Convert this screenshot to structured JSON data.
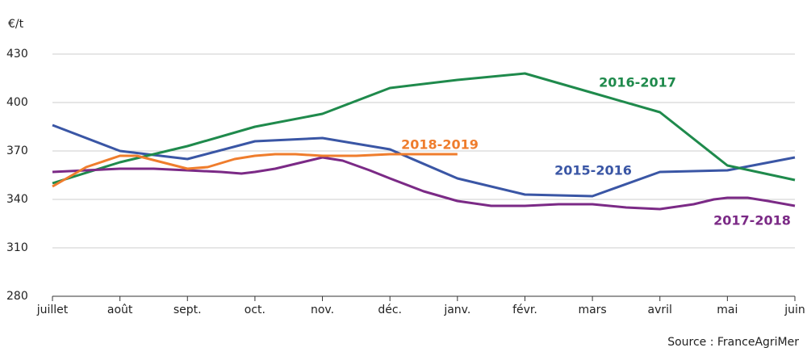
{
  "chart_data": {
    "type": "line",
    "y_unit_label": "€/t",
    "source": "Source : FranceAgriMer",
    "xlim": [
      0,
      11
    ],
    "xticks": [
      {
        "value": 0,
        "label": "juillet"
      },
      {
        "value": 1,
        "label": "août"
      },
      {
        "value": 2,
        "label": "sept."
      },
      {
        "value": 3,
        "label": "oct."
      },
      {
        "value": 4,
        "label": "nov."
      },
      {
        "value": 5,
        "label": "déc."
      },
      {
        "value": 6,
        "label": "janv."
      },
      {
        "value": 7,
        "label": "févr."
      },
      {
        "value": 8,
        "label": "mars"
      },
      {
        "value": 9,
        "label": "avril"
      },
      {
        "value": 10,
        "label": "mai"
      },
      {
        "value": 11,
        "label": "juin"
      }
    ],
    "ylim": [
      280,
      430
    ],
    "yticks": [
      280,
      310,
      340,
      370,
      400,
      430
    ],
    "grid": true,
    "series": [
      {
        "name": "2015-2016",
        "color": "#3a56a5",
        "x": [
          0,
          1,
          2,
          3,
          4,
          5,
          6,
          7,
          8,
          9,
          10,
          11
        ],
        "values": [
          386,
          370,
          365,
          376,
          378,
          371,
          353,
          343,
          342,
          357,
          358,
          366
        ]
      },
      {
        "name": "2016-2017",
        "color": "#1f8a4c",
        "x": [
          0,
          1,
          2,
          3,
          4,
          5,
          6,
          7,
          8,
          9,
          10,
          11
        ],
        "values": [
          350,
          363,
          373,
          385,
          393,
          409,
          414,
          418,
          406,
          394,
          361,
          352
        ]
      },
      {
        "name": "2017-2018",
        "color": "#7b2a86",
        "x": [
          0,
          0.5,
          1,
          1.5,
          2,
          2.5,
          2.8,
          3,
          3.3,
          3.7,
          4,
          4.3,
          4.7,
          5,
          5.5,
          6,
          6.5,
          7,
          7.5,
          8,
          8.5,
          9,
          9.5,
          9.8,
          10,
          10.3,
          10.6,
          11
        ],
        "values": [
          357,
          358,
          359,
          359,
          358,
          357,
          356,
          357,
          359,
          363,
          366,
          364,
          358,
          353,
          345,
          339,
          336,
          336,
          337,
          337,
          335,
          334,
          337,
          340,
          341,
          341,
          339,
          336
        ]
      },
      {
        "name": "2018-2019",
        "color": "#ef7d2d",
        "x": [
          0,
          0.5,
          1,
          1.25,
          2,
          2.3,
          2.7,
          3,
          3.3,
          3.6,
          4,
          4.5,
          5,
          6
        ],
        "values": [
          348,
          360,
          367,
          367,
          359,
          360,
          365,
          367,
          368,
          368,
          367,
          367,
          368,
          368
        ]
      }
    ]
  }
}
